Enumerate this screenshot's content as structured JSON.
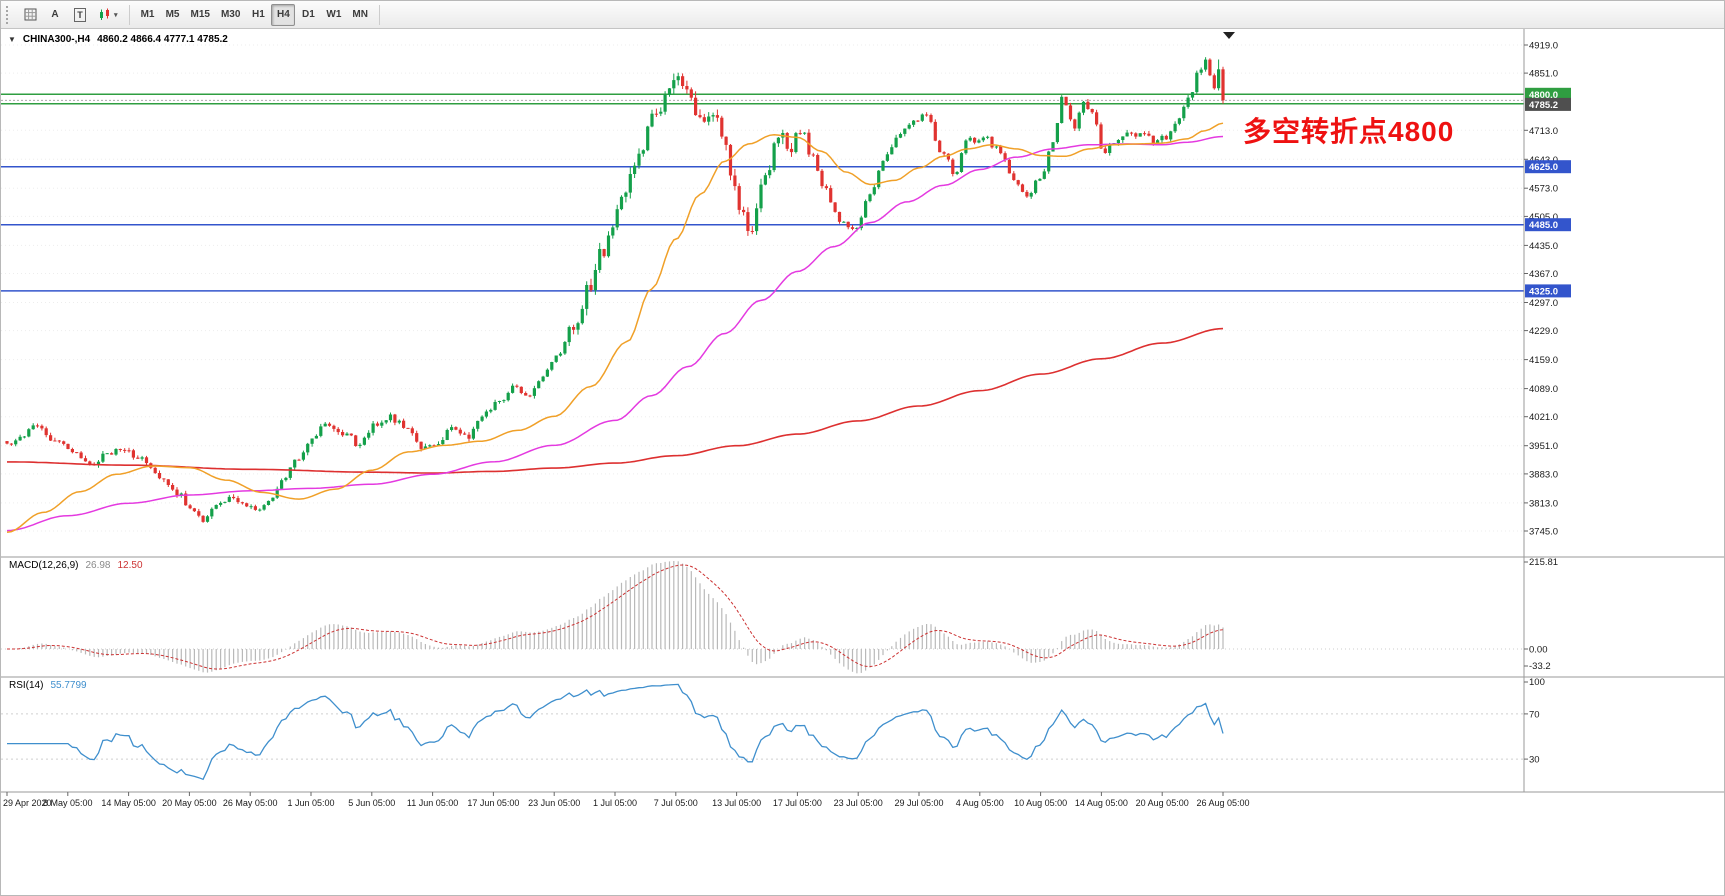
{
  "toolbar": {
    "cursor_label": "A",
    "text_label": "T",
    "indicator_caret": "▾",
    "timeframes": [
      {
        "label": "M1"
      },
      {
        "label": "M5"
      },
      {
        "label": "M15"
      },
      {
        "label": "M30"
      },
      {
        "label": "H1"
      },
      {
        "label": "H4",
        "selected": true
      },
      {
        "label": "D1"
      },
      {
        "label": "W1"
      },
      {
        "label": "MN"
      }
    ]
  },
  "chart": {
    "title_dropdown": "▼",
    "symbol_title": "CHINA300-,H4",
    "ohlc_text": "4860.2 4866.4 4777.1 4785.2",
    "annotation": "多空转折点4800",
    "current_price_label": "4785.2",
    "macd": {
      "label": "MACD(12,26,9)",
      "main": "26.98",
      "signal": "12.50",
      "axis": {
        "max": "215.81",
        "zero": "0.00",
        "min": "-33.2"
      }
    },
    "rsi": {
      "label": "RSI(14)",
      "value": "55.7799",
      "axis": {
        "top": "100",
        "upper": "70",
        "lower": "30"
      }
    }
  },
  "colors": {
    "up": "#14a04a",
    "down": "#e03330",
    "ma_fast": "#f0a028",
    "ma_medium": "#e43ae0",
    "ma_slow": "#dd3030",
    "line_green": "#2f9e41",
    "line_blue": "#3355cc",
    "macd_hist": "#b9b9b9",
    "macd_signal": "#cc3333",
    "macd_value_main": "#8a8a8a",
    "macd_value_signal": "#cc3333",
    "rsi": "#3f8fcd",
    "rsi_value": "#3f8fcd",
    "annotation": "#ee1111",
    "current_tag_bg": "#4f4f4f",
    "axis_text": "#1a1a1a",
    "grid": "#ededed",
    "separator": "#9a9a9a"
  },
  "chart_data": {
    "type": "candlestick",
    "symbol": "CHINA300-",
    "timeframe": "H4",
    "candle_count": 280,
    "price_range": [
      3745,
      4919
    ],
    "last_candle": {
      "open": 4860.2,
      "high": 4866.4,
      "low": 4777.1,
      "close": 4785.2
    },
    "price_axis_ticks": [
      4919,
      4851,
      4713,
      4643,
      4573,
      4505,
      4435,
      4367,
      4297,
      4229,
      4159,
      4089,
      4021,
      3951,
      3883,
      3813,
      3745
    ],
    "horizontal_lines": [
      {
        "price": 4800,
        "label": "4800.0",
        "color": "#2f9e41"
      },
      {
        "price": 4777,
        "label": null,
        "color": "#2f9e41"
      },
      {
        "price": 4625,
        "label": "4625.0",
        "color": "#3355cc"
      },
      {
        "price": 4485,
        "label": "4485.0",
        "color": "#3355cc"
      },
      {
        "price": 4325,
        "label": "4325.0",
        "color": "#3355cc"
      }
    ],
    "time_axis_labels": [
      "29 Apr 2020",
      "8 May 05:00",
      "14 May 05:00",
      "20 May 05:00",
      "26 May 05:00",
      "1 Jun 05:00",
      "5 Jun 05:00",
      "11 Jun 05:00",
      "17 Jun 05:00",
      "23 Jun 05:00",
      "1 Jul 05:00",
      "7 Jul 05:00",
      "13 Jul 05:00",
      "17 Jul 05:00",
      "23 Jul 05:00",
      "29 Jul 05:00",
      "4 Aug 05:00",
      "10 Aug 05:00",
      "14 Aug 05:00",
      "20 Aug 05:00",
      "26 Aug 05:00"
    ],
    "close_path_anchors": [
      [
        0.0,
        3950
      ],
      [
        0.012,
        3978
      ],
      [
        0.025,
        3998
      ],
      [
        0.04,
        3962
      ],
      [
        0.055,
        3942
      ],
      [
        0.068,
        3902
      ],
      [
        0.082,
        3932
      ],
      [
        0.095,
        3948
      ],
      [
        0.11,
        3918
      ],
      [
        0.125,
        3878
      ],
      [
        0.14,
        3838
      ],
      [
        0.152,
        3792
      ],
      [
        0.162,
        3772
      ],
      [
        0.172,
        3802
      ],
      [
        0.185,
        3826
      ],
      [
        0.196,
        3810
      ],
      [
        0.206,
        3788
      ],
      [
        0.216,
        3818
      ],
      [
        0.226,
        3862
      ],
      [
        0.238,
        3918
      ],
      [
        0.25,
        3962
      ],
      [
        0.262,
        3998
      ],
      [
        0.275,
        3982
      ],
      [
        0.29,
        3956
      ],
      [
        0.303,
        4008
      ],
      [
        0.316,
        4018
      ],
      [
        0.328,
        3996
      ],
      [
        0.34,
        3952
      ],
      [
        0.353,
        3944
      ],
      [
        0.366,
        3992
      ],
      [
        0.379,
        3974
      ],
      [
        0.392,
        4026
      ],
      [
        0.405,
        4062
      ],
      [
        0.417,
        4094
      ],
      [
        0.429,
        4072
      ],
      [
        0.441,
        4124
      ],
      [
        0.453,
        4178
      ],
      [
        0.466,
        4244
      ],
      [
        0.478,
        4330
      ],
      [
        0.49,
        4418
      ],
      [
        0.5,
        4498
      ],
      [
        0.509,
        4580
      ],
      [
        0.52,
        4668
      ],
      [
        0.531,
        4742
      ],
      [
        0.542,
        4790
      ],
      [
        0.551,
        4838
      ],
      [
        0.56,
        4812
      ],
      [
        0.57,
        4742
      ],
      [
        0.579,
        4768
      ],
      [
        0.59,
        4672
      ],
      [
        0.602,
        4532
      ],
      [
        0.612,
        4478
      ],
      [
        0.622,
        4590
      ],
      [
        0.634,
        4700
      ],
      [
        0.644,
        4664
      ],
      [
        0.653,
        4706
      ],
      [
        0.663,
        4648
      ],
      [
        0.673,
        4566
      ],
      [
        0.685,
        4498
      ],
      [
        0.697,
        4468
      ],
      [
        0.709,
        4556
      ],
      [
        0.721,
        4638
      ],
      [
        0.733,
        4700
      ],
      [
        0.746,
        4730
      ],
      [
        0.757,
        4752
      ],
      [
        0.768,
        4664
      ],
      [
        0.779,
        4614
      ],
      [
        0.791,
        4688
      ],
      [
        0.803,
        4700
      ],
      [
        0.815,
        4668
      ],
      [
        0.827,
        4600
      ],
      [
        0.838,
        4556
      ],
      [
        0.85,
        4600
      ],
      [
        0.86,
        4676
      ],
      [
        0.868,
        4796
      ],
      [
        0.877,
        4722
      ],
      [
        0.885,
        4778
      ],
      [
        0.893,
        4758
      ],
      [
        0.901,
        4662
      ],
      [
        0.911,
        4688
      ],
      [
        0.921,
        4708
      ],
      [
        0.934,
        4700
      ],
      [
        0.943,
        4688
      ],
      [
        0.954,
        4700
      ],
      [
        0.964,
        4738
      ],
      [
        0.972,
        4796
      ],
      [
        0.98,
        4854
      ],
      [
        0.986,
        4880
      ],
      [
        0.992,
        4824
      ],
      [
        1.0,
        4785
      ]
    ],
    "ma_fast_anchors": [
      [
        0.0,
        3742
      ],
      [
        0.03,
        3790
      ],
      [
        0.06,
        3840
      ],
      [
        0.09,
        3882
      ],
      [
        0.12,
        3902
      ],
      [
        0.15,
        3898
      ],
      [
        0.18,
        3868
      ],
      [
        0.21,
        3838
      ],
      [
        0.24,
        3822
      ],
      [
        0.27,
        3846
      ],
      [
        0.3,
        3892
      ],
      [
        0.33,
        3936
      ],
      [
        0.36,
        3952
      ],
      [
        0.39,
        3962
      ],
      [
        0.42,
        3988
      ],
      [
        0.45,
        4022
      ],
      [
        0.48,
        4094
      ],
      [
        0.51,
        4202
      ],
      [
        0.53,
        4330
      ],
      [
        0.55,
        4450
      ],
      [
        0.57,
        4558
      ],
      [
        0.59,
        4638
      ],
      [
        0.61,
        4680
      ],
      [
        0.63,
        4702
      ],
      [
        0.65,
        4696
      ],
      [
        0.67,
        4662
      ],
      [
        0.69,
        4612
      ],
      [
        0.71,
        4582
      ],
      [
        0.73,
        4592
      ],
      [
        0.75,
        4622
      ],
      [
        0.77,
        4650
      ],
      [
        0.79,
        4668
      ],
      [
        0.81,
        4678
      ],
      [
        0.83,
        4668
      ],
      [
        0.85,
        4652
      ],
      [
        0.87,
        4650
      ],
      [
        0.89,
        4668
      ],
      [
        0.91,
        4678
      ],
      [
        0.93,
        4680
      ],
      [
        0.95,
        4682
      ],
      [
        0.97,
        4692
      ],
      [
        0.985,
        4712
      ],
      [
        1.0,
        4730
      ]
    ],
    "ma_medium_anchors": [
      [
        0.0,
        3746
      ],
      [
        0.05,
        3782
      ],
      [
        0.1,
        3812
      ],
      [
        0.15,
        3832
      ],
      [
        0.2,
        3842
      ],
      [
        0.25,
        3848
      ],
      [
        0.3,
        3858
      ],
      [
        0.35,
        3882
      ],
      [
        0.4,
        3912
      ],
      [
        0.45,
        3952
      ],
      [
        0.5,
        4012
      ],
      [
        0.53,
        4072
      ],
      [
        0.56,
        4142
      ],
      [
        0.59,
        4222
      ],
      [
        0.62,
        4302
      ],
      [
        0.65,
        4372
      ],
      [
        0.68,
        4432
      ],
      [
        0.71,
        4490
      ],
      [
        0.74,
        4540
      ],
      [
        0.77,
        4580
      ],
      [
        0.8,
        4618
      ],
      [
        0.83,
        4648
      ],
      [
        0.86,
        4668
      ],
      [
        0.89,
        4678
      ],
      [
        0.92,
        4680
      ],
      [
        0.95,
        4678
      ],
      [
        0.97,
        4684
      ],
      [
        1.0,
        4698
      ]
    ],
    "ma_slow_anchors": [
      [
        0.0,
        3912
      ],
      [
        0.1,
        3904
      ],
      [
        0.2,
        3894
      ],
      [
        0.3,
        3887
      ],
      [
        0.35,
        3885
      ],
      [
        0.4,
        3889
      ],
      [
        0.45,
        3897
      ],
      [
        0.5,
        3909
      ],
      [
        0.55,
        3927
      ],
      [
        0.6,
        3951
      ],
      [
        0.65,
        3979
      ],
      [
        0.7,
        4011
      ],
      [
        0.75,
        4047
      ],
      [
        0.8,
        4084
      ],
      [
        0.85,
        4124
      ],
      [
        0.9,
        4161
      ],
      [
        0.95,
        4199
      ],
      [
        1.0,
        4234
      ]
    ],
    "indicators": {
      "macd": {
        "params": [
          12,
          26,
          9
        ],
        "main_value": 26.98,
        "signal_value": 12.5,
        "axis_max": 215.81,
        "axis_min": -33.2
      },
      "rsi": {
        "period": 14,
        "value": 55.7799,
        "levels": [
          70,
          30
        ],
        "axis": [
          100,
          70,
          30
        ]
      }
    }
  }
}
